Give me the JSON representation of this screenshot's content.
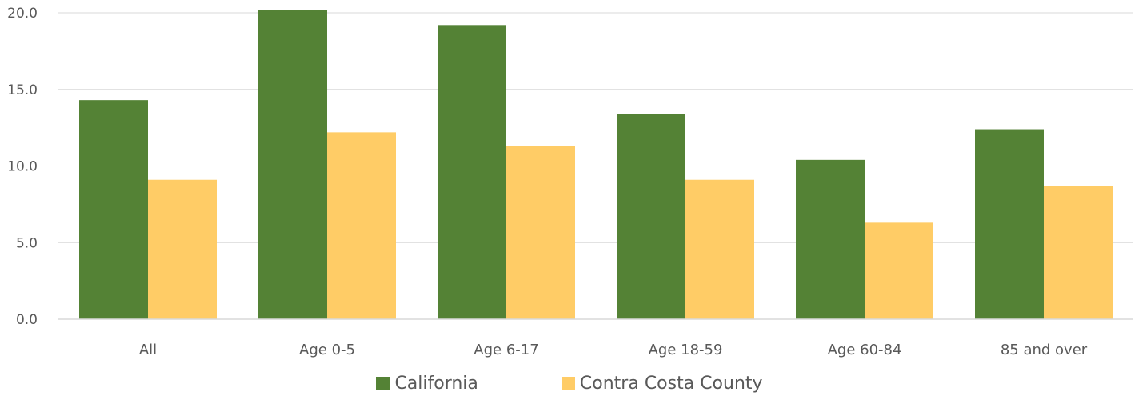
{
  "chart_data": {
    "type": "bar",
    "title": "",
    "xlabel": "",
    "ylabel": "",
    "categories": [
      "All",
      "Age 0-5",
      "Age 6-17",
      "Age 18-59",
      "Age 60-84",
      "85 and over"
    ],
    "series": [
      {
        "name": "California",
        "color": "#548235",
        "values": [
          14.3,
          20.2,
          19.2,
          13.4,
          10.4,
          12.4
        ]
      },
      {
        "name": "Contra Costa County",
        "color": "#FFCC66",
        "values": [
          9.1,
          12.2,
          11.3,
          9.1,
          6.3,
          8.7
        ]
      }
    ],
    "ylim": [
      0,
      20
    ],
    "yticks": [
      "0.0",
      "5.0",
      "10.0",
      "15.0",
      "20.0"
    ],
    "grid": true,
    "legend_position": "bottom"
  }
}
